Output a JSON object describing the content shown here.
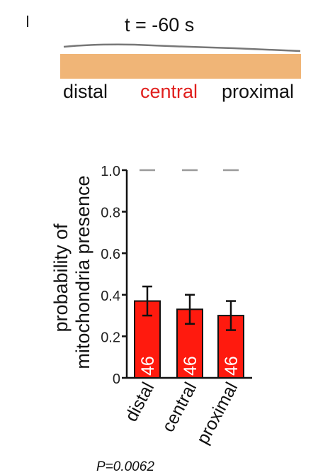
{
  "panel": {
    "time_label": "t = -60 s",
    "segment_labels": [
      "distal",
      "central",
      "proximal"
    ],
    "segment_colors": {
      "distal": "#111111",
      "central": "#e0201e",
      "proximal": "#111111"
    },
    "segment_bar_color": "#f0b577",
    "p_value": "P=0.0062"
  },
  "chart_data": {
    "type": "bar",
    "categories": [
      "distal",
      "central",
      "proximal"
    ],
    "values": [
      0.37,
      0.33,
      0.3
    ],
    "errors": [
      0.07,
      0.07,
      0.07
    ],
    "n_labels": [
      "46",
      "46",
      "46"
    ],
    "reference_level": 1.0,
    "ylabel_lines": [
      "probability of",
      "mitochondria presence"
    ],
    "yticks": [
      "0",
      "0.2",
      "0.4",
      "0.6",
      "0.8",
      "1.0"
    ],
    "ylim": [
      0,
      1.0
    ],
    "bar_color": "#ff1a0e",
    "grid": false
  }
}
